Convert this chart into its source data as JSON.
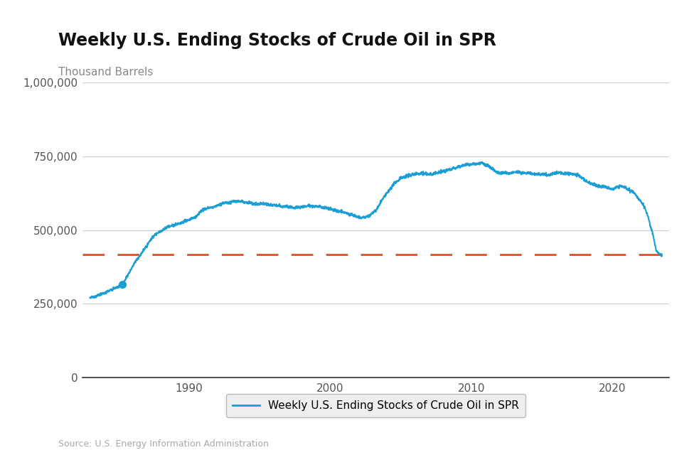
{
  "title": "Weekly U.S. Ending Stocks of Crude Oil in SPR",
  "ylabel": "Thousand Barrels",
  "source": "Source: U.S. Energy Information Administration",
  "legend_label": "Weekly U.S. Ending Stocks of Crude Oil in SPR",
  "line_color": "#1a9ed4",
  "dashed_color": "#e05a2b",
  "background_color": "#ffffff",
  "grid_color": "#cccccc",
  "ylim": [
    0,
    1000000
  ],
  "yticks": [
    0,
    250000,
    500000,
    750000,
    1000000
  ],
  "ytick_labels": [
    "0",
    "250,000",
    "500,000",
    "750,000",
    "1,000,000"
  ],
  "xlim_start": 1982.5,
  "xlim_end": 2024.0,
  "xticks": [
    1990,
    2000,
    2010,
    2020
  ],
  "dashed_line_value": 417000,
  "dot_x": 1985.3,
  "dot_y": 315000,
  "title_fontsize": 17,
  "ylabel_fontsize": 11,
  "tick_fontsize": 11,
  "legend_fontsize": 11,
  "title_color": "#111111",
  "tick_color": "#555555",
  "ylabel_color": "#888888",
  "source_color": "#aaaaaa"
}
